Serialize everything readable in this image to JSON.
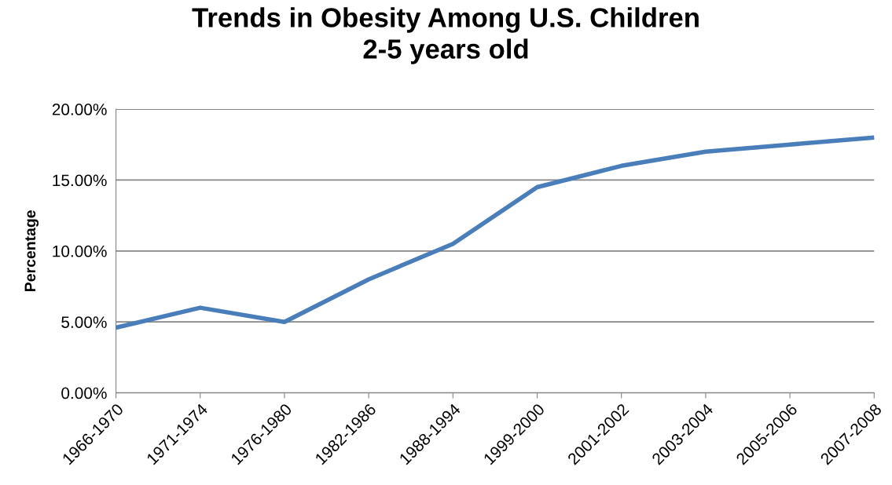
{
  "chart_data": {
    "type": "line",
    "title": "Trends in Obesity Among U.S. Children\n2-5 years old",
    "ylabel": "Percentage",
    "categories": [
      "1966-1970",
      "1971-1974",
      "1976-1980",
      "1982-1986",
      "1988-1994",
      "1999-2000",
      "2001-2002",
      "2003-2004",
      "2005-2006",
      "2007-2008"
    ],
    "series": [
      {
        "color": "#4a7ebb",
        "values": [
          4.6,
          6.0,
          5.0,
          8.0,
          10.5,
          14.5,
          16.0,
          17.0,
          17.5,
          18.0
        ]
      }
    ],
    "ylim": [
      0,
      20
    ],
    "yticks": [
      {
        "value": 0,
        "label": "0.00%"
      },
      {
        "value": 5,
        "label": "5.00%"
      },
      {
        "value": 10,
        "label": "10.00%"
      },
      {
        "value": 15,
        "label": "15.00%"
      },
      {
        "value": 20,
        "label": "20.00%"
      }
    ],
    "grid": "y",
    "marker": "none",
    "line_style": "solid"
  }
}
